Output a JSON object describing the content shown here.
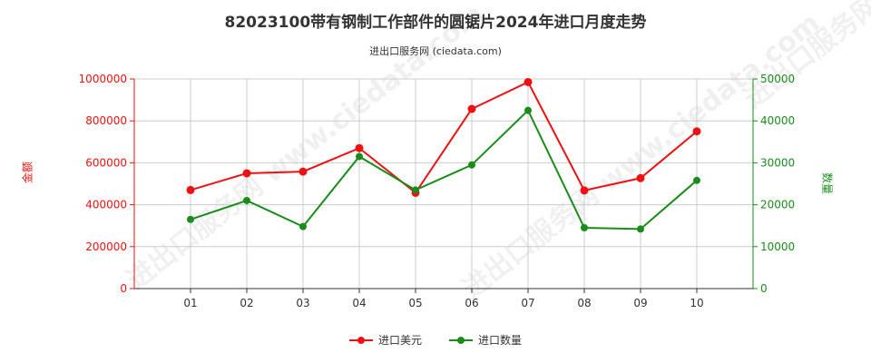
{
  "title": "82023100带有钢制工作部件的圆锯片2024年进口月度走势",
  "subtitle": "进出口服务网 (ciedata.com)",
  "watermark": "进出口服务网 www.ciedata.com",
  "colors": {
    "series1": "#ee1111",
    "series2": "#1a8c1a",
    "grid": "#cccccc",
    "axis": "#333333"
  },
  "chart_data": {
    "type": "line",
    "categories": [
      "01",
      "02",
      "03",
      "04",
      "05",
      "06",
      "07",
      "08",
      "09",
      "10"
    ],
    "series": [
      {
        "name": "进口美元",
        "axis": "left",
        "values": [
          470000,
          550000,
          558000,
          670000,
          457000,
          857000,
          985000,
          468000,
          527000,
          750000
        ]
      },
      {
        "name": "进口数量",
        "axis": "right",
        "values": [
          16500,
          21000,
          14800,
          31500,
          23500,
          29500,
          42500,
          14500,
          14200,
          25800
        ]
      }
    ],
    "ylabel_left": "金额",
    "ylabel_right": "数量",
    "ylim_left": [
      0,
      1000000
    ],
    "ylim_right": [
      0,
      50000
    ],
    "yticks_left": [
      "0",
      "200000",
      "400000",
      "600000",
      "800000",
      "1000000"
    ],
    "yticks_right": [
      "0",
      "10000",
      "20000",
      "30000",
      "40000",
      "50000"
    ],
    "grid": true,
    "legend_position": "bottom-center"
  }
}
